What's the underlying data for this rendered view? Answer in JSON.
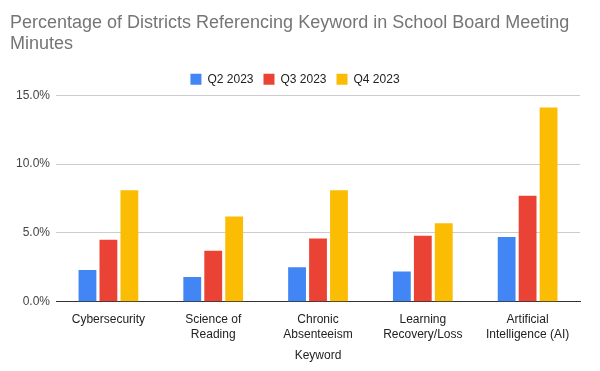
{
  "chart_data": {
    "type": "bar",
    "title": "Percentage of Districts Referencing Keyword in School Board Meeting Minutes",
    "x_label": "Keyword",
    "categories": [
      "Cybersecurity",
      "Science of Reading",
      "Chronic Absenteeism",
      "Learning Recovery/Loss",
      "Artificial Intelligence (AI)"
    ],
    "series": [
      {
        "name": "Q2 2023",
        "color": "#4285f4",
        "values": [
          2.3,
          1.8,
          2.5,
          2.2,
          4.7
        ]
      },
      {
        "name": "Q3 2023",
        "color": "#ea4335",
        "values": [
          4.5,
          3.7,
          4.6,
          4.8,
          7.7
        ]
      },
      {
        "name": "Q4 2023",
        "color": "#fbbc04",
        "values": [
          8.1,
          6.2,
          8.1,
          5.7,
          14.1
        ]
      }
    ],
    "ylim": [
      0,
      15
    ],
    "yticks": [
      {
        "value": 0,
        "label": "0.0%"
      },
      {
        "value": 5,
        "label": "5.0%"
      },
      {
        "value": 10,
        "label": "10.0%"
      },
      {
        "value": 15,
        "label": "15.0%"
      }
    ],
    "grid": true,
    "legend": "top"
  }
}
